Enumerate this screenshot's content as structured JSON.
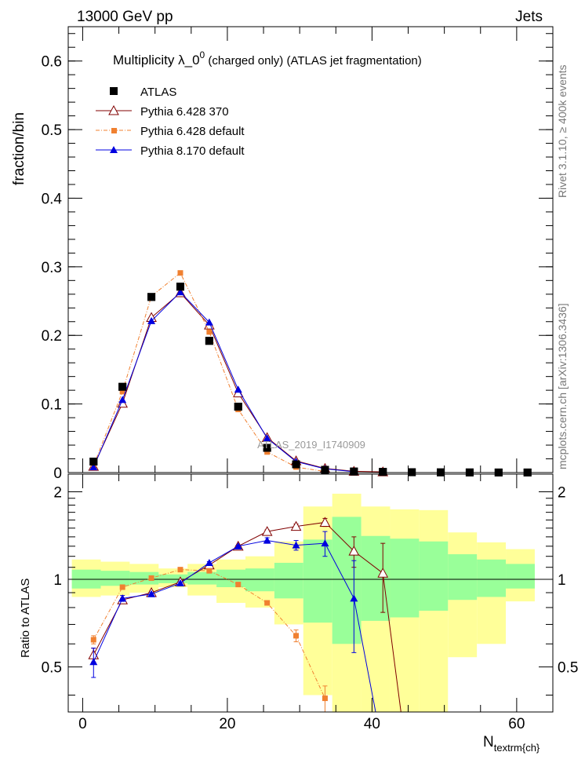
{
  "header": {
    "left": "13000 GeV pp",
    "right": "Jets"
  },
  "side_text": {
    "rivet": "Rivet 3.1.10, ≥ 400k events",
    "mcplots": "mcplots.cern.ch [arXiv:1306.3436]"
  },
  "chart_data": [
    {
      "type": "scatter",
      "panel": "main",
      "title_main": "Multiplicity  λ_0",
      "title_sup": "0",
      "title_rest": " (charged only) (ATLAS jet fragmentation)",
      "ylabel": "fraction/bin",
      "watermark": "ATLAS_2019_I1740909",
      "xlim": [
        -2,
        65
      ],
      "ylim": [
        0,
        0.65
      ],
      "yticks": [
        "0",
        "0.1",
        "0.2",
        "0.3",
        "0.4",
        "0.5",
        "0.6"
      ],
      "legend_position": "top-left",
      "series": [
        {
          "name": "ATLAS",
          "color": "#000000",
          "marker": "square",
          "x": [
            1.5,
            5.5,
            9.5,
            13.5,
            17.5,
            21.5,
            25.5,
            29.5,
            33.5,
            37.5,
            41.5,
            45.5,
            49.5,
            53.5,
            57.5,
            61.5
          ],
          "y": [
            0.016,
            0.125,
            0.256,
            0.271,
            0.192,
            0.096,
            0.036,
            0.012,
            0.004,
            0.0015,
            0.001,
            0.0005,
            0.0003,
            0.0002,
            0.0001,
            0.0001
          ]
        },
        {
          "name": "Pythia 6.428 370",
          "color": "#800000",
          "marker": "triangle-open",
          "x": [
            1.5,
            5.5,
            9.5,
            13.5,
            17.5,
            21.5,
            25.5,
            29.5,
            33.5,
            37.5,
            41.5
          ],
          "y": [
            0.009,
            0.101,
            0.226,
            0.262,
            0.215,
            0.116,
            0.051,
            0.017,
            0.006,
            0.0018,
            0.001
          ]
        },
        {
          "name": "Pythia 6.428 default",
          "color": "#f08030",
          "marker": "square-small",
          "x": [
            1.5,
            5.5,
            9.5,
            13.5,
            17.5,
            21.5,
            25.5,
            29.5,
            33.5
          ],
          "y": [
            0.01,
            0.118,
            0.257,
            0.291,
            0.205,
            0.092,
            0.03,
            0.008,
            0.0016
          ]
        },
        {
          "name": "Pythia 8.170 default",
          "color": "#0000e0",
          "marker": "triangle",
          "x": [
            1.5,
            5.5,
            9.5,
            13.5,
            17.5,
            21.5,
            25.5,
            29.5,
            33.5,
            37.5
          ],
          "y": [
            0.008,
            0.106,
            0.221,
            0.263,
            0.219,
            0.121,
            0.05,
            0.016,
            0.0055,
            0.0013
          ]
        }
      ]
    },
    {
      "type": "scatter",
      "panel": "ratio",
      "ylabel": "Ratio to ATLAS",
      "xlabel_main": "N",
      "xlabel_sub": "textrm{ch}",
      "xlim": [
        -2,
        65
      ],
      "ylim": [
        0.35,
        2.3
      ],
      "yticks": [
        "0.5",
        "1",
        "2"
      ],
      "xticks": [
        "0",
        "20",
        "40",
        "60"
      ],
      "bands": {
        "edges": [
          -1.5,
          2.5,
          6.5,
          10.5,
          14.5,
          18.5,
          22.5,
          26.5,
          30.5,
          34.5,
          38.5,
          42.5,
          46.5,
          50.5,
          54.5,
          58.5,
          62.5
        ],
        "yellow_lo": [
          0.87,
          0.88,
          0.9,
          0.94,
          0.88,
          0.83,
          0.8,
          0.7,
          0.4,
          0.35,
          0.35,
          0.35,
          0.35,
          0.54,
          0.6,
          0.84
        ],
        "yellow_hi": [
          1.17,
          1.15,
          1.13,
          1.09,
          1.13,
          1.17,
          1.2,
          1.35,
          1.78,
          1.97,
          1.78,
          1.74,
          1.73,
          1.45,
          1.34,
          1.27
        ],
        "green_lo": [
          0.93,
          0.95,
          0.96,
          0.97,
          0.96,
          0.94,
          0.91,
          0.86,
          0.71,
          0.6,
          0.72,
          0.74,
          0.78,
          0.85,
          0.87,
          0.93
        ],
        "green_hi": [
          1.08,
          1.07,
          1.06,
          1.04,
          1.06,
          1.08,
          1.09,
          1.14,
          1.37,
          1.64,
          1.41,
          1.38,
          1.35,
          1.22,
          1.17,
          1.13
        ]
      },
      "series": [
        {
          "name": "Pythia 6.428 370",
          "color": "#800000",
          "marker": "triangle-open",
          "x": [
            1.5,
            5.5,
            9.5,
            13.5,
            17.5,
            21.5,
            25.5,
            29.5,
            33.5,
            37.5,
            41.5,
            44.0
          ],
          "y": [
            0.55,
            0.85,
            0.9,
            0.98,
            1.12,
            1.3,
            1.46,
            1.52,
            1.57,
            1.25,
            1.05,
            0.3
          ],
          "err": [
            0.03,
            0.01,
            0.01,
            0.01,
            0.01,
            0.01,
            0.02,
            0.03,
            0.05,
            0.15,
            0.28,
            0
          ]
        },
        {
          "name": "Pythia 6.428 default",
          "color": "#f08030",
          "marker": "square-small",
          "x": [
            1.5,
            5.5,
            9.5,
            13.5,
            17.5,
            21.5,
            25.5,
            29.5,
            33.5
          ],
          "y": [
            0.62,
            0.94,
            1.01,
            1.08,
            1.07,
            0.96,
            0.83,
            0.64,
            0.39
          ],
          "err": [
            0.02,
            0.01,
            0.01,
            0.01,
            0.01,
            0.01,
            0.01,
            0.03,
            0.04
          ]
        },
        {
          "name": "Pythia 8.170 default",
          "color": "#0000e0",
          "marker": "triangle",
          "x": [
            1.5,
            5.5,
            9.5,
            13.5,
            17.5,
            21.5,
            25.5,
            29.5,
            33.5,
            37.5,
            40.5
          ],
          "y": [
            0.52,
            0.86,
            0.89,
            0.97,
            1.14,
            1.3,
            1.36,
            1.31,
            1.33,
            0.86,
            0.3
          ],
          "err": [
            0.06,
            0.02,
            0.01,
            0.01,
            0.01,
            0.01,
            0.03,
            0.05,
            0.13,
            0.3,
            0
          ]
        }
      ]
    }
  ]
}
